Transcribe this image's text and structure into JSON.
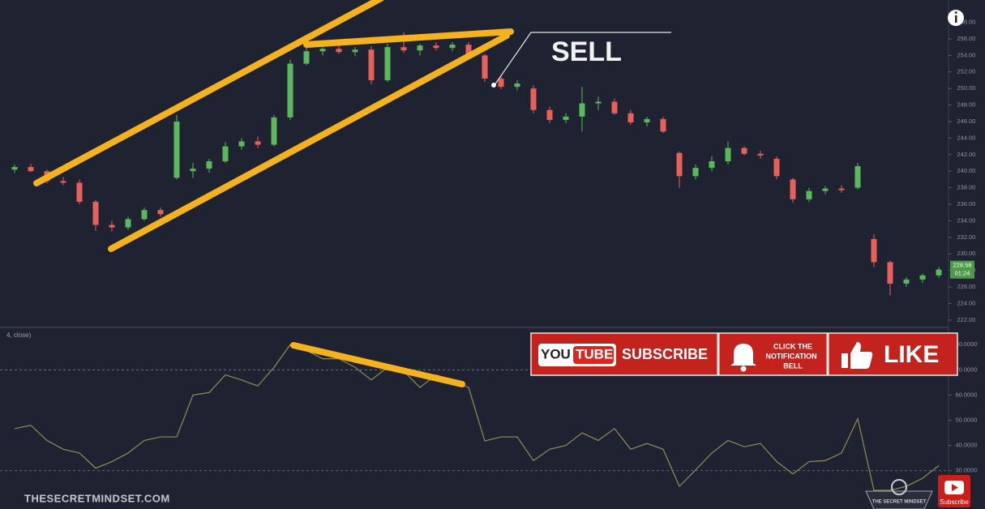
{
  "chart_data": [
    {
      "type": "candlestick",
      "open": [
        240.2,
        240.5,
        240.0,
        238.8,
        238.6,
        236.3,
        233.5,
        233.2,
        234.2,
        235.3,
        239.2,
        240.0,
        240.3,
        241.2,
        243.0,
        243.6,
        243.2,
        246.5,
        253.0,
        254.5,
        254.8,
        254.4,
        254.7,
        251.0,
        255.0,
        254.6,
        255.2,
        254.9,
        255.3,
        254.0,
        251.2,
        250.2,
        250.0,
        247.4,
        246.2,
        246.6,
        248.2,
        248.4,
        247.0,
        245.9,
        246.3,
        242.2,
        239.4,
        240.4,
        241.2,
        242.8,
        242.1,
        241.5,
        239.0,
        236.6,
        237.6,
        237.9,
        238.0,
        231.8,
        229.0,
        226.4,
        226.9,
        227.4
      ],
      "high": [
        240.8,
        240.9,
        240.2,
        239.3,
        239.0,
        236.5,
        234.0,
        234.5,
        235.6,
        235.6,
        246.8,
        241.0,
        241.5,
        243.5,
        244.0,
        244.2,
        246.8,
        253.5,
        255.0,
        255.2,
        255.3,
        255.0,
        255.1,
        255.4,
        256.8,
        255.4,
        255.6,
        255.6,
        255.6,
        254.2,
        251.5,
        251.0,
        250.4,
        247.8,
        247.0,
        250.2,
        249.0,
        248.8,
        247.4,
        246.6,
        246.6,
        242.4,
        240.8,
        241.8,
        243.6,
        243.0,
        242.5,
        241.8,
        239.2,
        238.0,
        238.2,
        238.3,
        241.0,
        232.4,
        229.2,
        227.2,
        227.6,
        228.4
      ],
      "low": [
        239.8,
        239.9,
        238.5,
        238.3,
        236.0,
        232.8,
        232.7,
        232.9,
        234.0,
        234.5,
        239.0,
        239.2,
        239.8,
        241.0,
        242.6,
        242.8,
        243.0,
        246.2,
        252.8,
        254.0,
        254.2,
        253.9,
        250.5,
        250.8,
        254.3,
        254.0,
        254.6,
        254.5,
        253.5,
        250.8,
        249.9,
        249.8,
        247.0,
        245.8,
        245.8,
        244.8,
        247.4,
        246.8,
        245.6,
        245.4,
        244.6,
        238.0,
        239.0,
        240.0,
        240.8,
        241.9,
        241.5,
        239.0,
        236.2,
        236.3,
        237.2,
        237.4,
        237.8,
        228.4,
        225.0,
        226.0,
        226.5,
        227.1
      ],
      "close": [
        240.5,
        240.0,
        238.8,
        238.6,
        236.3,
        233.5,
        233.2,
        234.2,
        235.3,
        234.8,
        246.0,
        240.3,
        241.2,
        243.0,
        243.6,
        243.2,
        246.5,
        253.0,
        254.5,
        254.8,
        254.4,
        254.7,
        251.0,
        255.0,
        254.6,
        255.2,
        254.9,
        255.3,
        254.0,
        251.2,
        250.2,
        250.6,
        247.4,
        246.2,
        246.6,
        248.2,
        248.4,
        247.0,
        245.9,
        246.3,
        244.8,
        239.4,
        240.4,
        241.2,
        242.8,
        242.1,
        241.9,
        239.4,
        236.6,
        237.6,
        237.9,
        237.7,
        240.6,
        229.0,
        226.4,
        226.9,
        227.4,
        228.1
      ],
      "up_color": "#5cb85c",
      "down_color": "#e8605c",
      "ylim": [
        221.2,
        260.7
      ],
      "yticks": [
        {
          "value": 222,
          "label": "222.00"
        },
        {
          "value": 224,
          "label": "224.00"
        },
        {
          "value": 226,
          "label": "226.00"
        },
        {
          "value": 228,
          "label": "228.00"
        },
        {
          "value": 230,
          "label": "230.00"
        },
        {
          "value": 232,
          "label": "232.00"
        },
        {
          "value": 234,
          "label": "234.00"
        },
        {
          "value": 236,
          "label": "236.00"
        },
        {
          "value": 238,
          "label": "238.00"
        },
        {
          "value": 240,
          "label": "240.00"
        },
        {
          "value": 242,
          "label": "242.00"
        },
        {
          "value": 244,
          "label": "244.00"
        },
        {
          "value": 246,
          "label": "246.00"
        },
        {
          "value": 248,
          "label": "248.00"
        },
        {
          "value": 250,
          "label": "250.00"
        },
        {
          "value": 252,
          "label": "252.00"
        },
        {
          "value": 254,
          "label": "254.00"
        },
        {
          "value": 256,
          "label": "256.00"
        },
        {
          "value": 258,
          "label": "258.00"
        }
      ],
      "last_price": 228.58,
      "countdown": "01:24",
      "grid": false
    },
    {
      "type": "line",
      "title": "4, close)",
      "values": [
        46.7,
        48,
        42,
        38.5,
        37,
        31,
        33.6,
        37,
        42,
        43.4,
        43.4,
        60,
        61,
        68,
        66,
        63.6,
        71,
        80,
        77.7,
        74.4,
        74.4,
        71,
        66,
        71,
        69.5,
        63,
        68,
        65.6,
        63,
        41.8,
        43.4,
        43.4,
        34,
        38.5,
        40,
        45,
        42,
        46.7,
        38.5,
        40.8,
        38.5,
        23.8,
        30.3,
        37,
        42,
        39.5,
        40.8,
        33.6,
        28.7,
        33.6,
        34,
        37,
        50.6,
        22.2,
        22.2,
        23.8,
        27,
        32
      ],
      "color": "#8f8f52",
      "levels": [
        70,
        30
      ],
      "ylim": [
        14.8,
        86.5
      ],
      "yticks": [
        {
          "value": 30,
          "label": "30.0000"
        },
        {
          "value": 40,
          "label": "40.0000"
        },
        {
          "value": 50,
          "label": "50.0000"
        },
        {
          "value": 60,
          "label": "60.0000"
        },
        {
          "value": 70,
          "label": "70.0000"
        },
        {
          "value": 80,
          "label": "80.0000"
        }
      ]
    }
  ],
  "overlay": {
    "sell": "SELL",
    "watermark": "THESECRETMINDSET.COM",
    "banner": {
      "you": "YOU",
      "tube": "TUBE",
      "subscribe": "SUBSCRIBE",
      "bell_lines": [
        "CLICK THE",
        "NOTIFICATION",
        "BELL"
      ],
      "like": "LIKE"
    },
    "logo": "THE SECRET MINDSET",
    "subscribe_button": "Subscribe"
  }
}
